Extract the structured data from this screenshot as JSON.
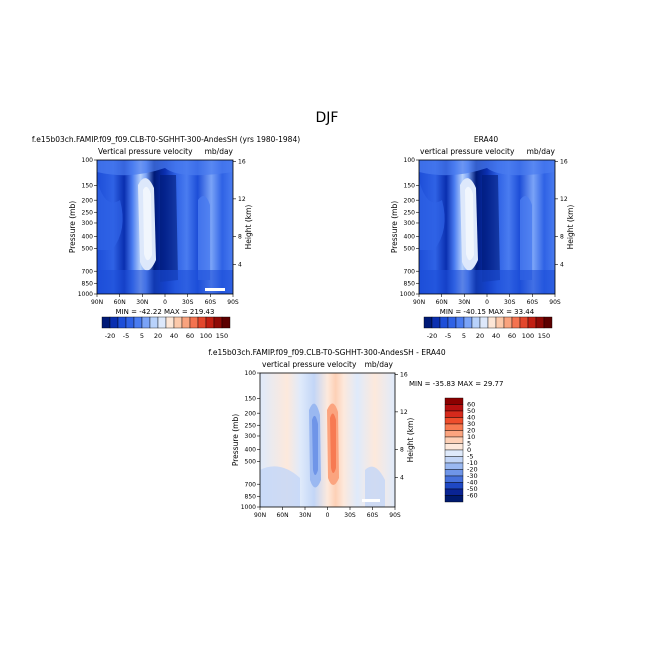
{
  "page": {
    "title": "DJF"
  },
  "chart_data": [
    {
      "type": "heatmap",
      "name": "model",
      "title": "f.e15b03ch.FAMIP.f09_f09.CLB-T0-SGHHT-300-AndesSH (yrs 1980-1984)",
      "subtitle_left": "Vertical pressure velocity",
      "subtitle_right": "mb/day",
      "ylabel": "Pressure (mb)",
      "ylabel_right": "Height (km)",
      "x_ticks": [
        "90N",
        "60N",
        "30N",
        "0",
        "30S",
        "60S",
        "90S"
      ],
      "y_ticks": [
        "100",
        "150",
        "200",
        "250",
        "300",
        "400",
        "500",
        "700",
        "850",
        "1000"
      ],
      "y_right_ticks": [
        "16",
        "12",
        "8",
        "4"
      ],
      "stats": "MIN = -42.22   MAX = 219.43",
      "colorbar_labels": [
        "-20",
        "-5",
        "5",
        "20",
        "40",
        "60",
        "100",
        "150"
      ]
    },
    {
      "type": "heatmap",
      "name": "obs",
      "title": "ERA40",
      "subtitle_left": "vertical pressure velocity",
      "subtitle_right": "mb/day",
      "ylabel": "Pressure (mb)",
      "ylabel_right": "Height (km)",
      "x_ticks": [
        "90N",
        "60N",
        "30N",
        "0",
        "30S",
        "60S",
        "90S"
      ],
      "y_ticks": [
        "100",
        "150",
        "200",
        "250",
        "300",
        "400",
        "500",
        "700",
        "850",
        "1000"
      ],
      "y_right_ticks": [
        "16",
        "12",
        "8",
        "4"
      ],
      "stats": "MIN = -40.15   MAX = 33.44",
      "colorbar_labels": [
        "-20",
        "-5",
        "5",
        "20",
        "40",
        "60",
        "100",
        "150"
      ]
    },
    {
      "type": "heatmap",
      "name": "diff",
      "title": "f.e15b03ch.FAMIP.f09_f09.CLB-T0-SGHHT-300-AndesSH - ERA40",
      "subtitle_left": "vertical pressure velocity",
      "subtitle_right": "mb/day",
      "ylabel": "Pressure (mb)",
      "ylabel_right": "Height (km)",
      "x_ticks": [
        "90N",
        "60N",
        "30N",
        "0",
        "30S",
        "60S",
        "90S"
      ],
      "y_ticks": [
        "100",
        "150",
        "200",
        "250",
        "300",
        "400",
        "500",
        "700",
        "850",
        "1000"
      ],
      "y_right_ticks": [
        "16",
        "12",
        "8",
        "4"
      ],
      "stats": "MIN = -35.83   MAX = 29.77",
      "colorbar_labels": [
        "60",
        "50",
        "40",
        "30",
        "20",
        "10",
        "5",
        "0",
        "-5",
        "-10",
        "-20",
        "-30",
        "-40",
        "-50",
        "-60"
      ]
    }
  ],
  "colors": {
    "seq_scale": [
      "#001a77",
      "#0a2fb0",
      "#1d4ed8",
      "#2f62e5",
      "#4a7cf0",
      "#7aa3f7",
      "#b8d2fb",
      "#dde8fb",
      "#fde6d6",
      "#fcc9aa",
      "#f9a37e",
      "#f47350",
      "#e3472c",
      "#c11f12",
      "#8f0a06",
      "#5c0000"
    ],
    "div_scale": [
      "#8b0000",
      "#b50f0f",
      "#d62a1c",
      "#ee4d2c",
      "#f77a52",
      "#fba47f",
      "#fdd0b6",
      "#fde9dc",
      "#dfeafb",
      "#c3d6f7",
      "#9ab8f1",
      "#6f95e8",
      "#4670db",
      "#1f48c4",
      "#0a2494",
      "#001a6e"
    ]
  }
}
